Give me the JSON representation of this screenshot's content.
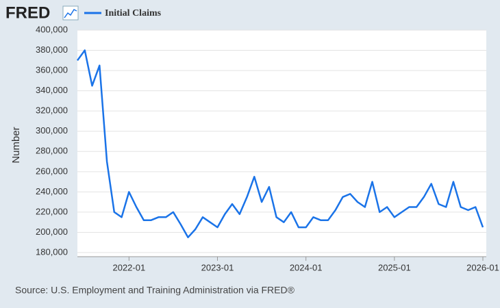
{
  "logo": "FRED",
  "source": "Source: U.S. Employment and Training Administration via FRED®",
  "chart_data": {
    "type": "line",
    "ylabel": "Number",
    "x": [
      "2021-06",
      "2021-07",
      "2021-08",
      "2021-09",
      "2021-10",
      "2021-11",
      "2021-12",
      "2022-01",
      "2022-02",
      "2022-03",
      "2022-04",
      "2022-05",
      "2022-06",
      "2022-07",
      "2022-08",
      "2022-09",
      "2022-10",
      "2022-11",
      "2022-12",
      "2023-01",
      "2023-02",
      "2023-03",
      "2023-04",
      "2023-05",
      "2023-06",
      "2023-07",
      "2023-08",
      "2023-09",
      "2023-10",
      "2023-11",
      "2023-12",
      "2024-01",
      "2024-02",
      "2024-03",
      "2024-04",
      "2024-05",
      "2024-06",
      "2024-07",
      "2024-08",
      "2024-09",
      "2024-10",
      "2024-11",
      "2024-12",
      "2025-01",
      "2025-02",
      "2025-03",
      "2025-04",
      "2025-05",
      "2025-06",
      "2025-07",
      "2025-08",
      "2025-09",
      "2025-10",
      "2025-11",
      "2025-12",
      "2026-01"
    ],
    "series": [
      {
        "name": "Initial Claims",
        "color": "#1a73e8",
        "values": [
          370000,
          380000,
          345000,
          365000,
          270000,
          220000,
          215000,
          240000,
          225000,
          212000,
          212000,
          215000,
          215000,
          220000,
          208000,
          195000,
          203000,
          215000,
          210000,
          205000,
          218000,
          228000,
          218000,
          235000,
          255000,
          230000,
          245000,
          215000,
          210000,
          220000,
          205000,
          205000,
          215000,
          212000,
          212000,
          222000,
          235000,
          238000,
          230000,
          225000,
          250000,
          220000,
          225000,
          215000,
          220000,
          225000,
          225000,
          235000,
          248000,
          228000,
          225000,
          250000,
          225000,
          222000,
          225000,
          205000
        ]
      }
    ],
    "xlim": [
      "2021-06",
      "2026-01"
    ],
    "xticks": [
      "2022-01",
      "2023-01",
      "2024-01",
      "2025-01",
      "2026-01"
    ],
    "ylim": [
      180000,
      400000
    ],
    "yticks": [
      {
        "value": 180000,
        "label": "180,000"
      },
      {
        "value": 200000,
        "label": "200,000"
      },
      {
        "value": 220000,
        "label": "220,000"
      },
      {
        "value": 240000,
        "label": "240,000"
      },
      {
        "value": 260000,
        "label": "260,000"
      },
      {
        "value": 280000,
        "label": "280,000"
      },
      {
        "value": 300000,
        "label": "300,000"
      },
      {
        "value": 320000,
        "label": "320,000"
      },
      {
        "value": 340000,
        "label": "340,000"
      },
      {
        "value": 360000,
        "label": "360,000"
      },
      {
        "value": 380000,
        "label": "380,000"
      },
      {
        "value": 400000,
        "label": "400,000"
      }
    ],
    "grid": true
  }
}
